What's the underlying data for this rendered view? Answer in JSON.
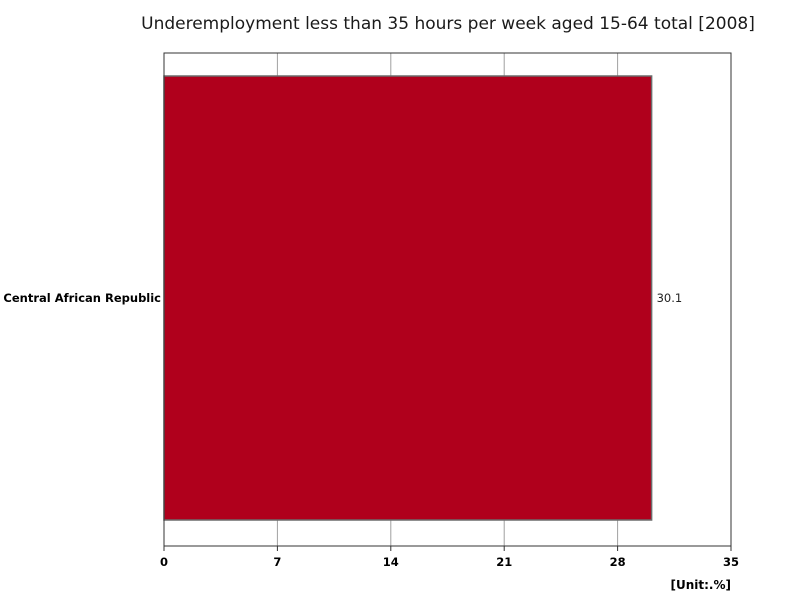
{
  "chart_data": {
    "type": "bar",
    "orientation": "horizontal",
    "title": "Underemployment less than 35 hours per week aged 15-64 total [2008]",
    "categories": [
      "Central African Republic"
    ],
    "values": [
      30.1
    ],
    "data_labels": [
      "30.1"
    ],
    "xlim": [
      0,
      35
    ],
    "xticks": [
      0,
      7,
      14,
      21,
      28,
      35
    ],
    "xtick_labels": [
      "0",
      "7",
      "14",
      "21",
      "28",
      "35"
    ],
    "unit_label": "[Unit:.%]",
    "grid": true,
    "legend": "none",
    "colors": {
      "bar": "#b0001c",
      "bar_border": "#6b6b6b",
      "grid": "#a0a0a0",
      "frame": "#333333"
    }
  }
}
